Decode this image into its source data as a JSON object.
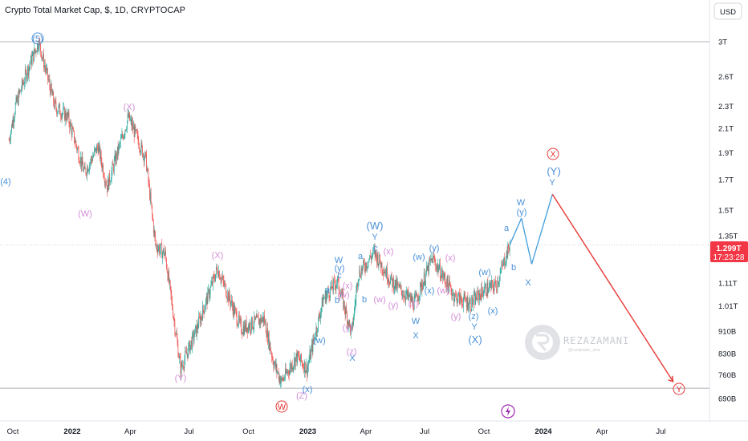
{
  "header": {
    "title": "Crypto Total Market Cap, $, 1D, CRYPTOCAP",
    "currency": "USD"
  },
  "price_tag": {
    "value": "1.299T",
    "countdown": "17:23:28",
    "color": "#f23645"
  },
  "watermark": {
    "name": "REZAZAMANI",
    "handle": "@rezatrader_new"
  },
  "colors": {
    "up": "#26a69a",
    "down": "#ef5350",
    "wave_blue": "#4a90d9",
    "wave_pink": "#d48ed8",
    "wave_red": "#e53935",
    "forecast_blue": "#4aa3df",
    "forecast_red": "#e53935"
  },
  "chart_data": {
    "type": "candlestick",
    "title": "Crypto Total Market Cap, $, 1D, CRYPTOCAP",
    "xlabel": "",
    "ylabel": "",
    "y_scale": "log",
    "ylim": [
      640000000000.0,
      3500000000000.0
    ],
    "x_ticks": [
      "Oct",
      "2022",
      "Apr",
      "Jul",
      "Oct",
      "2023",
      "Apr",
      "Jul",
      "Oct",
      "2024",
      "Apr",
      "Jul"
    ],
    "y_ticks": [
      "3T",
      "2.6T",
      "2.3T",
      "2.1T",
      "1.9T",
      "1.7T",
      "1.5T",
      "1.35T",
      "1.11T",
      "1.01T",
      "910B",
      "830B",
      "760B",
      "690B"
    ],
    "y_tick_values": [
      3000000000000.0,
      2600000000000.0,
      2300000000000.0,
      2100000000000.0,
      1900000000000.0,
      1700000000000.0,
      1500000000000.0,
      1350000000000.0,
      1110000000000.0,
      1010000000000.0,
      910000000000.0,
      830000000000.0,
      760000000000.0,
      690000000000.0
    ],
    "horizontal_lines": [
      3000000000000.0,
      720000000000.0,
      1299000000000.0
    ],
    "last_price": 1299000000000.0,
    "approx_path": [
      {
        "t": "2021-09-25",
        "v": 2000000000000.0
      },
      {
        "t": "2021-10-05",
        "v": 2300000000000.0
      },
      {
        "t": "2021-10-20",
        "v": 2600000000000.0
      },
      {
        "t": "2021-11-10",
        "v": 3000000000000.0
      },
      {
        "t": "2021-12-05",
        "v": 2300000000000.0
      },
      {
        "t": "2021-12-25",
        "v": 2200000000000.0
      },
      {
        "t": "2022-01-20",
        "v": 1750000000000.0
      },
      {
        "t": "2022-02-10",
        "v": 1950000000000.0
      },
      {
        "t": "2022-02-24",
        "v": 1650000000000.0
      },
      {
        "t": "2022-03-29",
        "v": 2200000000000.0
      },
      {
        "t": "2022-04-25",
        "v": 1850000000000.0
      },
      {
        "t": "2022-05-10",
        "v": 1300000000000.0
      },
      {
        "t": "2022-05-25",
        "v": 1250000000000.0
      },
      {
        "t": "2022-06-18",
        "v": 780000000000.0
      },
      {
        "t": "2022-07-10",
        "v": 900000000000.0
      },
      {
        "t": "2022-08-14",
        "v": 1180000000000.0
      },
      {
        "t": "2022-09-20",
        "v": 920000000000.0
      },
      {
        "t": "2022-10-25",
        "v": 960000000000.0
      },
      {
        "t": "2022-11-09",
        "v": 800000000000.0
      },
      {
        "t": "2022-11-21",
        "v": 740000000000.0
      },
      {
        "t": "2022-12-15",
        "v": 820000000000.0
      },
      {
        "t": "2022-12-31",
        "v": 780000000000.0
      },
      {
        "t": "2023-01-25",
        "v": 1040000000000.0
      },
      {
        "t": "2023-02-16",
        "v": 1120000000000.0
      },
      {
        "t": "2023-03-10",
        "v": 900000000000.0
      },
      {
        "t": "2023-03-20",
        "v": 1150000000000.0
      },
      {
        "t": "2023-04-14",
        "v": 1260000000000.0
      },
      {
        "t": "2023-05-10",
        "v": 1120000000000.0
      },
      {
        "t": "2023-06-15",
        "v": 1020000000000.0
      },
      {
        "t": "2023-07-13",
        "v": 1230000000000.0
      },
      {
        "t": "2023-08-17",
        "v": 1050000000000.0
      },
      {
        "t": "2023-09-11",
        "v": 1020000000000.0
      },
      {
        "t": "2023-10-01",
        "v": 1080000000000.0
      },
      {
        "t": "2023-10-20",
        "v": 1100000000000.0
      },
      {
        "t": "2023-11-10",
        "v": 1300000000000.0
      }
    ],
    "forecast_path": [
      {
        "t": "2023-11-10",
        "v": 1300000000000.0
      },
      {
        "t": "2023-11-28",
        "v": 1450000000000.0
      },
      {
        "t": "2023-12-14",
        "v": 1200000000000.0
      },
      {
        "t": "2024-01-15",
        "v": 1600000000000.0
      },
      {
        "t": "2024-07-20",
        "v": 740000000000.0
      }
    ],
    "annotations": [
      {
        "text": "(5)",
        "color": "blue",
        "circled": true
      },
      {
        "text": "(4)",
        "color": "blue"
      },
      {
        "text": "(X)",
        "color": "pink"
      },
      {
        "text": "(W)",
        "color": "pink"
      },
      {
        "text": "(X)",
        "color": "pink"
      },
      {
        "text": "(Y)",
        "color": "pink"
      },
      {
        "text": "(Z)",
        "color": "pink"
      },
      {
        "text": "W",
        "color": "red",
        "circled": true
      },
      {
        "text": "(w)",
        "color": "blue"
      },
      {
        "text": "(x)",
        "color": "blue"
      },
      {
        "text": "a",
        "color": "blue"
      },
      {
        "text": "b",
        "color": "blue"
      },
      {
        "text": "c",
        "color": "blue"
      },
      {
        "text": "(y)",
        "color": "blue"
      },
      {
        "text": "W",
        "color": "blue"
      },
      {
        "text": "X",
        "color": "blue"
      },
      {
        "text": "(x)",
        "color": "pink"
      },
      {
        "text": "(w)",
        "color": "pink"
      },
      {
        "text": "(y)",
        "color": "pink"
      },
      {
        "text": "(z)",
        "color": "pink"
      },
      {
        "text": "(W)",
        "color": "blue"
      },
      {
        "text": "Y",
        "color": "blue"
      },
      {
        "text": "a",
        "color": "blue"
      },
      {
        "text": "b",
        "color": "blue"
      },
      {
        "text": "c",
        "color": "blue"
      },
      {
        "text": "(x)",
        "color": "pink"
      },
      {
        "text": "(w)",
        "color": "pink"
      },
      {
        "text": "(y)",
        "color": "pink"
      },
      {
        "text": "W",
        "color": "blue"
      },
      {
        "text": "X",
        "color": "blue"
      },
      {
        "text": "(w)",
        "color": "blue"
      },
      {
        "text": "(y)",
        "color": "blue"
      },
      {
        "text": "(x)",
        "color": "blue"
      },
      {
        "text": "(x)",
        "color": "pink"
      },
      {
        "text": "(w)",
        "color": "pink"
      },
      {
        "text": "(z)",
        "color": "pink"
      },
      {
        "text": "(y)",
        "color": "pink"
      },
      {
        "text": "(z)",
        "color": "blue"
      },
      {
        "text": "Y",
        "color": "blue"
      },
      {
        "text": "(X)",
        "color": "blue"
      },
      {
        "text": "(w)",
        "color": "blue"
      },
      {
        "text": "(x)",
        "color": "blue"
      },
      {
        "text": "a",
        "color": "blue"
      },
      {
        "text": "b",
        "color": "blue"
      },
      {
        "text": "(y)",
        "color": "blue"
      },
      {
        "text": "W",
        "color": "blue"
      },
      {
        "text": "X",
        "color": "blue"
      },
      {
        "text": "(Y)",
        "color": "blue"
      },
      {
        "text": "Y",
        "color": "blue"
      },
      {
        "text": "X",
        "color": "red",
        "circled": true
      },
      {
        "text": "Y",
        "color": "red",
        "circled": true
      }
    ]
  }
}
